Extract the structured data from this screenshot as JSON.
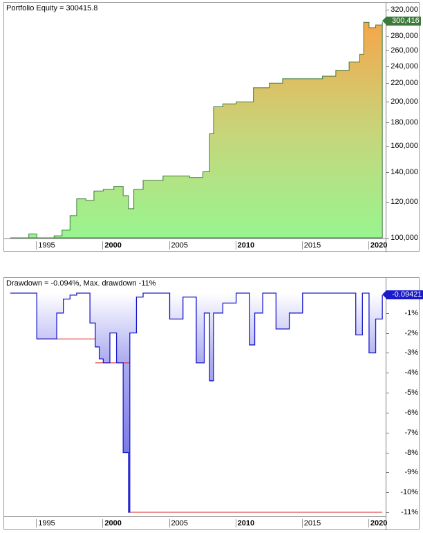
{
  "chart_data": [
    {
      "type": "area",
      "title": "Portfolio Equity = 300415.8",
      "ylabel": "Portfolio Equity",
      "y_scale": "log",
      "ylim": [
        100000,
        320000
      ],
      "yticks": [
        "320,000",
        "300,416",
        "280,000",
        "260,000",
        "240,000",
        "220,000",
        "200,000",
        "180,000",
        "160,000",
        "140,000",
        "120,000",
        "100,000"
      ],
      "xticks": [
        "1995",
        "2000",
        "2005",
        "2010",
        "2015",
        "2020"
      ],
      "xticks_bold": [
        "2000",
        "2010",
        "2020"
      ],
      "last_value_label": "300,416",
      "colors": {
        "line": "#3c7a3c",
        "fill_top": "#f5a64a",
        "fill_bottom": "#98f590"
      },
      "series": [
        {
          "name": "Portfolio Equity",
          "x": [
            1993.0,
            1994.4,
            1995.0,
            1996.3,
            1996.9,
            1997.5,
            1998.0,
            1998.7,
            1999.3,
            2000.0,
            2000.8,
            2001.5,
            2001.9,
            2002.3,
            2003.0,
            2004.5,
            2006.5,
            2007.5,
            2008.0,
            2008.3,
            2009.0,
            2010.0,
            2011.3,
            2012.5,
            2013.5,
            2015.0,
            2016.5,
            2017.5,
            2018.5,
            2019.3,
            2019.6,
            2020.0,
            2020.5,
            2021.0
          ],
          "values": [
            100000,
            102000,
            100000,
            101000,
            104000,
            112000,
            122000,
            121000,
            127000,
            128000,
            130000,
            124000,
            116000,
            128000,
            134000,
            137000,
            136000,
            140000,
            170000,
            195000,
            198000,
            200000,
            215000,
            220000,
            225000,
            225000,
            228000,
            235000,
            245000,
            255000,
            300000,
            292000,
            296000,
            300416
          ]
        }
      ],
      "grid": false,
      "legend": "none"
    },
    {
      "type": "area",
      "title": "Drawdown = -0.094%, Max. drawdown -11%",
      "ylabel": "Drawdown %",
      "ylim": [
        -11,
        0
      ],
      "yticks": [
        "0%",
        "-1%",
        "-2%",
        "-3%",
        "-4%",
        "-5%",
        "-6%",
        "-7%",
        "-8%",
        "-9%",
        "-10%",
        "-11%"
      ],
      "xticks": [
        "1995",
        "2000",
        "2005",
        "2010",
        "2015",
        "2020"
      ],
      "xticks_bold": [
        "2000",
        "2010",
        "2020"
      ],
      "last_value_label": "-0.09421",
      "colors": {
        "line": "#1a1acc",
        "fill": "#b8b8f0",
        "max_dd_line": "#dd2222"
      },
      "series": [
        {
          "name": "Drawdown",
          "x": [
            1993.0,
            1995.0,
            1995.6,
            1996.5,
            1997.0,
            1997.5,
            1998.0,
            1999.0,
            1999.4,
            1999.7,
            2000.0,
            2000.5,
            2001.0,
            2001.5,
            2001.9,
            2002.0,
            2002.5,
            2003.0,
            2005.0,
            2006.0,
            2007.0,
            2007.6,
            2008.0,
            2008.3,
            2009.0,
            2010.0,
            2011.0,
            2011.4,
            2012.0,
            2013.0,
            2014.0,
            2015.0,
            2016.0,
            2019.0,
            2019.5,
            2020.0,
            2020.5,
            2021.0
          ],
          "values": [
            0,
            -2.3,
            -2.3,
            -1.0,
            -0.3,
            -0.1,
            0,
            -1.5,
            -2.7,
            -3.3,
            -3.5,
            -2.0,
            -3.5,
            -8.0,
            -11.0,
            -2.0,
            -0.2,
            0,
            -1.3,
            -0.2,
            -3.5,
            -1.0,
            -4.4,
            -1.0,
            -0.5,
            0,
            -2.6,
            -1.0,
            0,
            -1.8,
            -1.0,
            0,
            0,
            -2.1,
            0,
            -3.0,
            -1.3,
            -0.094
          ]
        },
        {
          "name": "Max drawdown level",
          "x": [
            1995.0,
            1999.4,
            2002.0,
            2021.0
          ],
          "values": [
            -2.3,
            -3.5,
            -11.0,
            -11.0
          ]
        }
      ],
      "grid": false,
      "legend": "none"
    }
  ],
  "equity_pane": {
    "title": "Portfolio Equity = 300415.8",
    "badge": "300,416",
    "yaxis": [
      "320,000",
      "280,000",
      "260,000",
      "240,000",
      "220,000",
      "200,000",
      "180,000",
      "160,000",
      "140,000",
      "120,000",
      "100,000"
    ],
    "xaxis": [
      "1995",
      "2000",
      "2005",
      "2010",
      "2015",
      "2020"
    ]
  },
  "drawdown_pane": {
    "title": "Drawdown = -0.094%, Max. drawdown -11%",
    "badge": "-0.09421",
    "yaxis": [
      "-1%",
      "-2%",
      "-3%",
      "-4%",
      "-5%",
      "-6%",
      "-7%",
      "-8%",
      "-9%",
      "-10%",
      "-11%"
    ],
    "xaxis": [
      "1995",
      "2000",
      "2005",
      "2010",
      "2015",
      "2020"
    ]
  }
}
